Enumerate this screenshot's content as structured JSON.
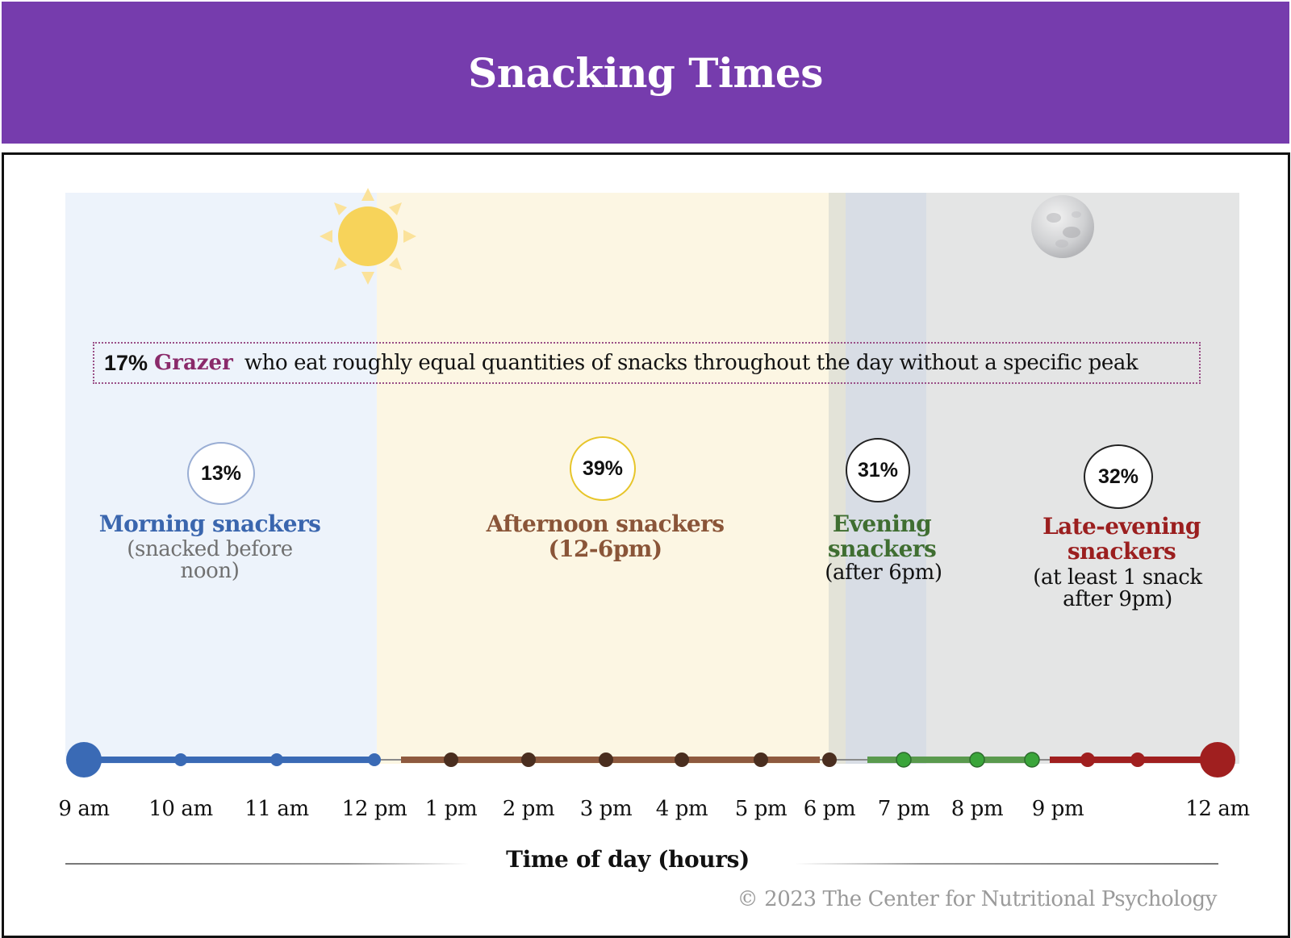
{
  "header": {
    "title": "Snacking Times"
  },
  "grazer": {
    "percent": "17%",
    "label": "Grazer",
    "description": "who eat roughly equal quantities of snacks throughout the day without a specific peak"
  },
  "categories": [
    {
      "percent": "13%",
      "name": "Morning snackers",
      "note": "(snacked before noon)",
      "color": "#3a66ae",
      "ring_color": "#9aaed4"
    },
    {
      "percent": "39%",
      "name": "Afternoon snackers (12-6pm)",
      "note": "",
      "color": "#8a5538",
      "ring_color": "#e7c52a"
    },
    {
      "percent": "31%",
      "name": "Evening snackers",
      "note": "(after 6pm)",
      "color": "#3f6e31",
      "ring_color": "#222222"
    },
    {
      "percent": "32%",
      "name": "Late-evening snackers",
      "note": "(at least 1 snack after 9pm)",
      "color": "#9b1f1f",
      "ring_color": "#222222"
    }
  ],
  "timeline": {
    "ticks": [
      "9 am",
      "10 am",
      "11 am",
      "12 pm",
      "1 pm",
      "2 pm",
      "3 pm",
      "4 pm",
      "5 pm",
      "6 pm",
      "7 pm",
      "8 pm",
      "9 pm",
      "12 am"
    ],
    "segment_colors": {
      "morning": "#3a6ab5",
      "afternoon": "#8e5a3f",
      "afternoon_dot": "#4a2e1f",
      "evening": "#5a9a4e",
      "evening_dot": "#3aa53a",
      "late": "#a01f1f"
    },
    "axis_title": "Time of day (hours)"
  },
  "footer": {
    "copyright": "© 2023 The Center for Nutritional Psychology"
  },
  "icons": {
    "sun": "sun-icon",
    "moon": "moon-icon"
  }
}
